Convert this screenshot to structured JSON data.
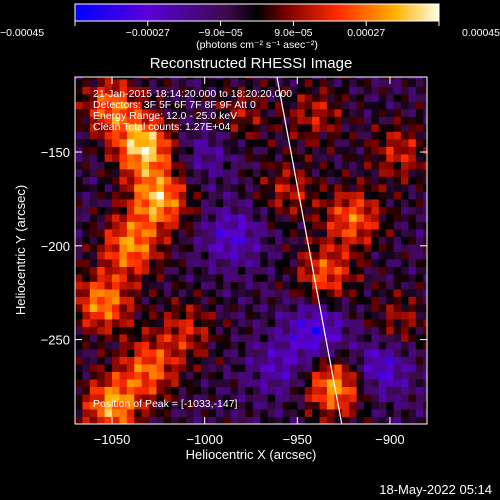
{
  "chart_data": {
    "type": "heatmap",
    "title": "Reconstructed RHESSI Image",
    "xlabel": "Heliocentric X (arcsec)",
    "ylabel": "Heliocentric Y (arcsec)",
    "xlim": [
      -1070,
      -880
    ],
    "ylim": [
      -295,
      -110
    ],
    "xticks": [
      -1050,
      -1000,
      -950,
      -900
    ],
    "yticks": [
      -150,
      -200,
      -250
    ],
    "xtick_labels": [
      "−1050",
      "−1000",
      "−950",
      "−900"
    ],
    "ytick_labels": [
      "−150",
      "−200",
      "−250"
    ],
    "annotations": [
      "21-Jan-2015 18:14:20.000 to 18:20:20.000",
      "Detectors: 3F 5F 6F 7F 8F 9F Att 0",
      "Energy Range: 12.0 - 25.0 keV",
      "Clean    Total counts: 1.27E+04"
    ],
    "peak_label": "Position of Peak = [-1033,-147]",
    "peak": [
      -1033,
      -147
    ],
    "limb_line": [
      [
        -961,
        -110
      ],
      [
        -926,
        -295
      ]
    ],
    "colorbar": {
      "range": [
        -0.00045,
        0.00045
      ],
      "ticks": [
        -0.00045,
        -0.00027,
        -9e-05,
        9e-05,
        0.00027,
        0.00045
      ],
      "tick_labels": [
        "−0.00045",
        "−0.00027",
        "−9.0e−05",
        "9.0e−05",
        "0.00027",
        "0.00045"
      ],
      "units": "(photons cm⁻² s⁻¹ asec⁻²)"
    },
    "features": [
      {
        "x": -1033,
        "y": -147,
        "value": 0.00045
      },
      {
        "x": -1025,
        "y": -175,
        "value": 0.0004
      },
      {
        "x": -1050,
        "y": -125,
        "value": 0.0003
      },
      {
        "x": -1040,
        "y": -200,
        "value": 0.00035
      },
      {
        "x": -1055,
        "y": -230,
        "value": 0.00035
      },
      {
        "x": -1030,
        "y": -265,
        "value": 0.0003
      },
      {
        "x": -1050,
        "y": -285,
        "value": 0.00038
      },
      {
        "x": -1010,
        "y": -245,
        "value": 0.0002
      },
      {
        "x": -980,
        "y": -130,
        "value": 0.00015
      },
      {
        "x": -940,
        "y": -130,
        "value": 0.00018
      },
      {
        "x": -920,
        "y": -185,
        "value": 0.0003
      },
      {
        "x": -935,
        "y": -215,
        "value": 0.00028
      },
      {
        "x": -955,
        "y": -170,
        "value": 0.00018
      },
      {
        "x": -930,
        "y": -275,
        "value": 0.00038
      },
      {
        "x": -895,
        "y": -150,
        "value": 0.0002
      },
      {
        "x": -895,
        "y": -240,
        "value": 0.00015
      },
      {
        "x": -985,
        "y": -195,
        "value": -0.0002
      },
      {
        "x": -940,
        "y": -245,
        "value": -0.00025
      },
      {
        "x": -905,
        "y": -265,
        "value": -0.00022
      },
      {
        "x": -1000,
        "y": -150,
        "value": -0.00012
      },
      {
        "x": -960,
        "y": -265,
        "value": -0.00015
      }
    ]
  },
  "footer": {
    "timestamp": "18-May-2022 05:14"
  }
}
